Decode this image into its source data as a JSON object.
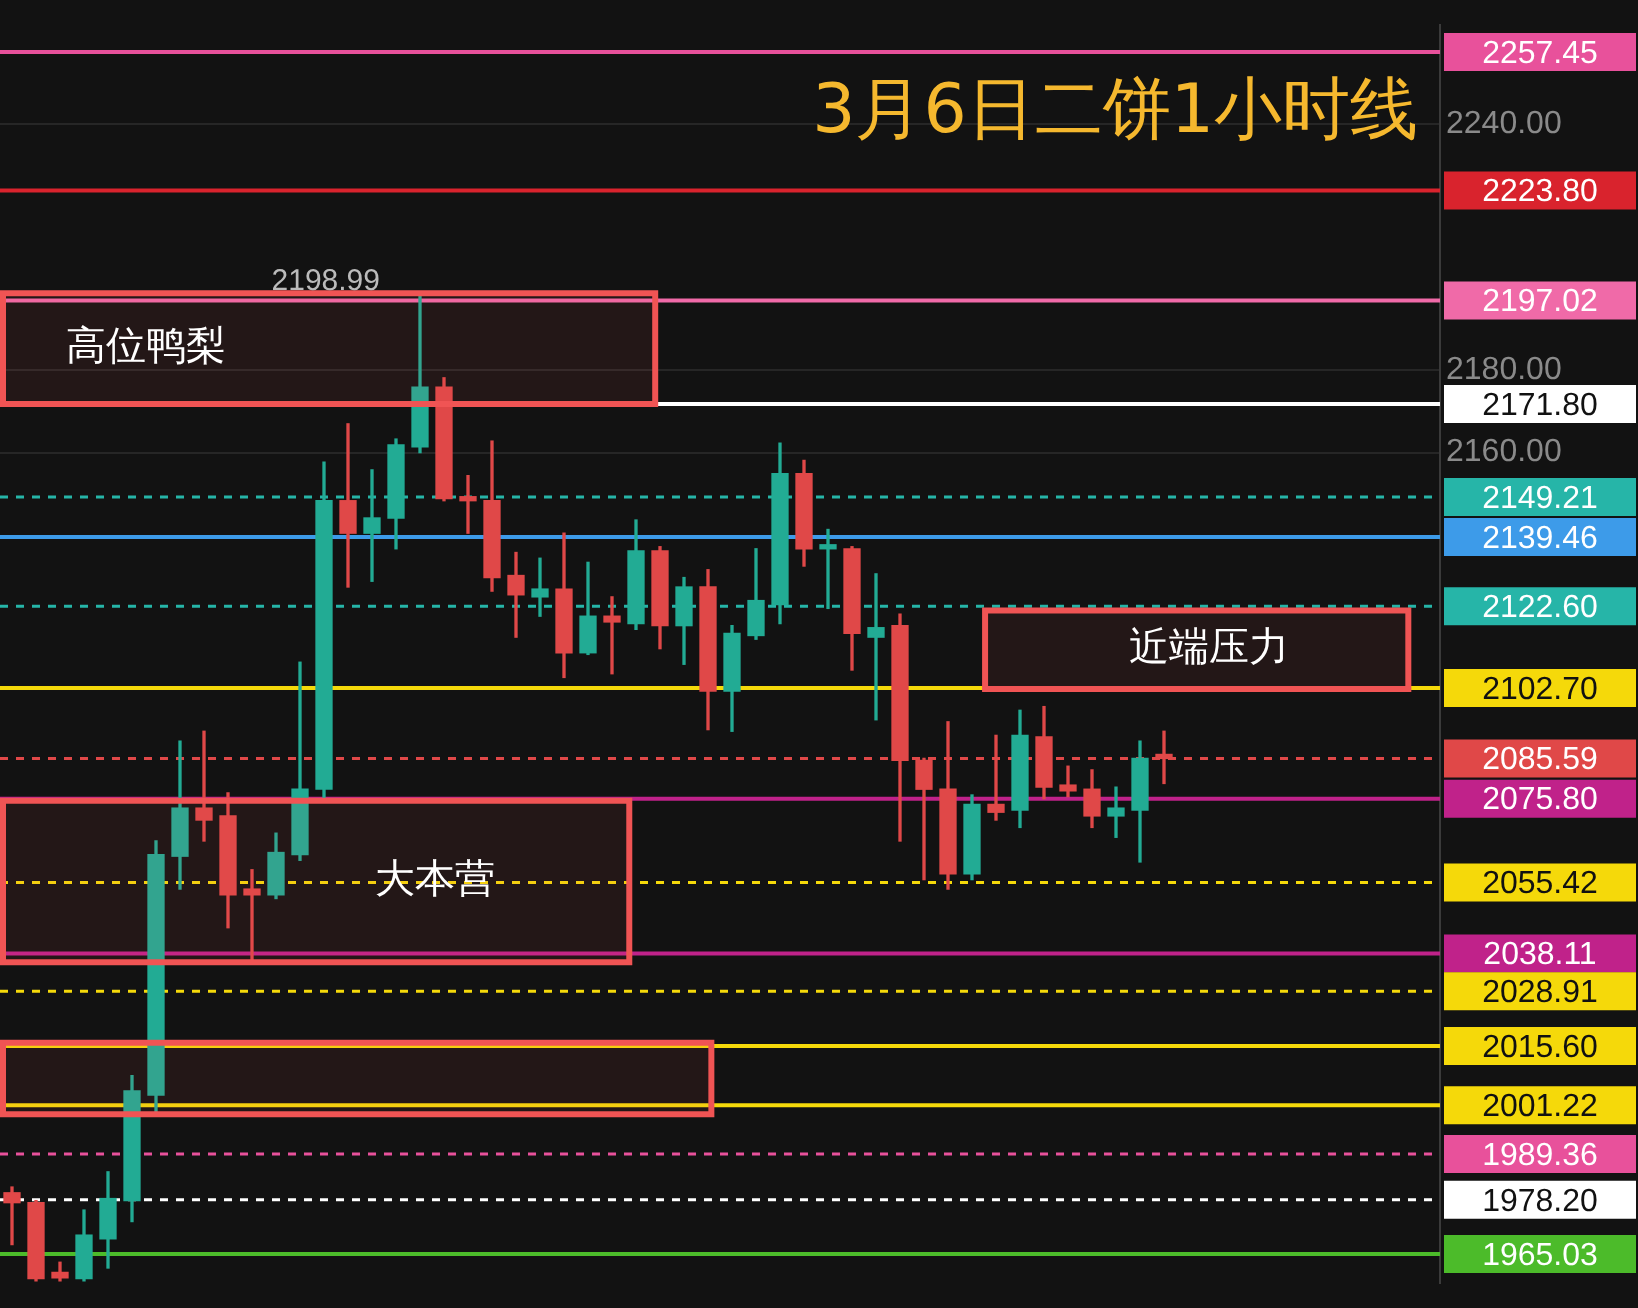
{
  "chart_data": {
    "type": "candlestick",
    "title": "3月6日二饼1小时线",
    "categories": [
      null,
      null,
      null,
      null,
      null,
      null,
      null,
      null,
      null,
      null,
      null,
      null,
      null,
      null,
      null,
      null,
      null,
      null,
      null,
      null,
      null,
      null,
      null,
      null,
      null,
      null,
      null,
      null,
      null,
      null,
      null,
      null,
      null,
      null,
      null,
      null,
      null,
      null,
      null,
      null,
      null,
      null,
      null,
      null,
      null,
      null,
      null,
      null,
      null,
      null,
      null,
      null,
      null,
      null,
      null,
      null,
      null,
      null,
      null,
      null
    ],
    "ohlc": [
      [
        1979.9,
        1981.3,
        1967.3,
        1977.5
      ],
      [
        1977.5,
        1978.0,
        1958.5,
        1959.0
      ],
      [
        1960.5,
        1963.0,
        1958.5,
        1959.2
      ],
      [
        1959.0,
        1975.7,
        1958.5,
        1969.6
      ],
      [
        1968.7,
        1985.0,
        1961.6,
        1978.5
      ],
      [
        1978.0,
        2008.4,
        1972.9,
        2004.7
      ],
      [
        2003.7,
        2065.5,
        1999.1,
        2062.2
      ],
      [
        2061.8,
        2089.8,
        2053.8,
        2073.5
      ],
      [
        2073.5,
        2092.2,
        2065.5,
        2070.6
      ],
      [
        2071.6,
        2077.2,
        2044.4,
        2052.4
      ],
      [
        2053.8,
        2058.5,
        2036.0,
        2052.4
      ],
      [
        2052.4,
        2067.4,
        2051.5,
        2062.7
      ],
      [
        2062.2,
        2109.0,
        2060.8,
        2078.1
      ],
      [
        2078.1,
        2157.7,
        2076.0,
        2148.3
      ],
      [
        2148.3,
        2167.0,
        2127.3,
        2140.4
      ],
      [
        2140.4,
        2155.8,
        2128.7,
        2144.1
      ],
      [
        2144.1,
        2163.3,
        2136.6,
        2161.9
      ],
      [
        2161.4,
        2198.99,
        2160.0,
        2175.9
      ],
      [
        2175.9,
        2178.2,
        2148.3,
        2148.8
      ],
      [
        2148.8,
        2154.4,
        2140.4,
        2148.3
      ],
      [
        2148.3,
        2162.8,
        2126.3,
        2129.6
      ],
      [
        2130.1,
        2135.7,
        2115.1,
        2125.4
      ],
      [
        2124.9,
        2134.3,
        2120.2,
        2126.8
      ],
      [
        2126.8,
        2140.4,
        2105.3,
        2111.3
      ],
      [
        2111.3,
        2133.3,
        2110.9,
        2120.2
      ],
      [
        2120.2,
        2124.9,
        2106.2,
        2118.8
      ],
      [
        2118.4,
        2143.6,
        2117.0,
        2136.1
      ],
      [
        2136.1,
        2137.1,
        2112.3,
        2117.9
      ],
      [
        2117.9,
        2129.6,
        2108.5,
        2127.3
      ],
      [
        2127.3,
        2131.5,
        2092.6,
        2102.0
      ],
      [
        2102.0,
        2117.9,
        2092.2,
        2116.0
      ],
      [
        2115.5,
        2136.6,
        2114.6,
        2124.0
      ],
      [
        2123.0,
        2162.3,
        2118.4,
        2154.9
      ],
      [
        2154.9,
        2158.1,
        2132.4,
        2136.6
      ],
      [
        2136.6,
        2141.3,
        2122.1,
        2137.1
      ],
      [
        2136.6,
        2137.1,
        2107.1,
        2116.0
      ],
      [
        2115.1,
        2130.5,
        2095.0,
        2117.4
      ],
      [
        2117.9,
        2120.7,
        2065.5,
        2085.1
      ],
      [
        2085.1,
        2085.6,
        2056.1,
        2078.1
      ],
      [
        2078.1,
        2094.5,
        2053.8,
        2057.5
      ],
      [
        2057.5,
        2076.7,
        2056.1,
        2074.4
      ],
      [
        2074.4,
        2091.2,
        2070.6,
        2072.5
      ],
      [
        2073.0,
        2097.3,
        2068.8,
        2091.2
      ],
      [
        2090.8,
        2098.2,
        2075.8,
        2078.6
      ],
      [
        2079.1,
        2083.7,
        2076.3,
        2077.7
      ],
      [
        2078.1,
        2082.8,
        2068.8,
        2071.6
      ],
      [
        2071.6,
        2078.6,
        2066.4,
        2073.5
      ],
      [
        2073.0,
        2089.8,
        2060.4,
        2085.6
      ],
      [
        2086.0,
        2092.2,
        2079.5,
        2085.59
      ],
      null,
      null,
      null,
      null,
      null,
      null,
      null,
      null,
      null,
      null,
      null
    ],
    "colors": [
      "#e04848",
      "#e04848",
      "#e04848",
      "#22ab94",
      "#22ab94",
      "#22ab94",
      "#22ab94",
      "#22ab94",
      "#e04848",
      "#e04848",
      "#e04848",
      "#22ab94",
      "#22ab94",
      "#22ab94",
      "#e04848",
      "#22ab94",
      "#22ab94",
      "#22ab94",
      "#e04848",
      "#e04848",
      "#e04848",
      "#e04848",
      "#22ab94",
      "#e04848",
      "#22ab94",
      "#e04848",
      "#22ab94",
      "#e04848",
      "#22ab94",
      "#e04848",
      "#22ab94",
      "#22ab94",
      "#22ab94",
      "#e04848",
      "#22ab94",
      "#e04848",
      "#22ab94",
      "#e04848",
      "#e04848",
      "#e04848",
      "#22ab94",
      "#e04848",
      "#22ab94",
      "#e04848",
      "#e04848",
      "#e04848",
      "#22ab94",
      "#22ab94",
      "#e04848",
      null,
      null,
      null,
      null,
      null,
      null,
      null,
      null,
      null,
      null,
      null
    ],
    "ylim": [
      1958,
      2264
    ],
    "yticks": [
      {
        "value": 2160,
        "label": "2160.00"
      },
      {
        "value": 2180,
        "label": "2180.00"
      },
      {
        "value": 2240,
        "label": "2240.00"
      }
    ],
    "grid": "y",
    "legend": false,
    "tick_labels": "y",
    "ref_lines": [
      {
        "axis": "y",
        "value": 2257.45,
        "label": "2257.45",
        "color": "#e8519b",
        "line_style": "solid"
      },
      {
        "axis": "y",
        "value": 2223.8,
        "label": "2223.80",
        "color": "#d9232d",
        "line_style": "solid"
      },
      {
        "axis": "y",
        "value": 2197.02,
        "label": "2197.02",
        "color": "#f06aa8",
        "line_style": "solid"
      },
      {
        "axis": "y",
        "value": 2171.8,
        "label": "2171.80",
        "color": "#ffffff",
        "line_style": "solid"
      },
      {
        "axis": "y",
        "value": 2149.21,
        "label": "2149.21",
        "color": "#26b5a8",
        "line_style": "dashed"
      },
      {
        "axis": "y",
        "value": 2139.46,
        "label": "2139.46",
        "color": "#3d9be9",
        "line_style": "solid"
      },
      {
        "axis": "y",
        "value": 2122.6,
        "label": "2122.60",
        "color": "#26b5a8",
        "line_style": "dashed"
      },
      {
        "axis": "y",
        "value": 2102.7,
        "label": "2102.70",
        "color": "#f5d90a",
        "line_style": "solid"
      },
      {
        "axis": "y",
        "value": 2085.59,
        "label": "2085.59",
        "color": "#e04848",
        "line_style": "dashed"
      },
      {
        "axis": "y",
        "value": 2075.8,
        "label": "2075.80",
        "color": "#c0228a",
        "line_style": "solid"
      },
      {
        "axis": "y",
        "value": 2055.42,
        "label": "2055.42",
        "color": "#f5d90a",
        "line_style": "dashed"
      },
      {
        "axis": "y",
        "value": 2038.11,
        "label": "2038.11",
        "color": "#c0228a",
        "line_style": "solid"
      },
      {
        "axis": "y",
        "value": 2028.91,
        "label": "2028.91",
        "color": "#f5d90a",
        "line_style": "dashed"
      },
      {
        "axis": "y",
        "value": 2015.6,
        "label": "2015.60",
        "color": "#f5d90a",
        "line_style": "solid"
      },
      {
        "axis": "y",
        "value": 2001.22,
        "label": "2001.22",
        "color": "#f5d90a",
        "line_style": "solid"
      },
      {
        "axis": "y",
        "value": 1989.36,
        "label": "1989.36",
        "color": "#e8519b",
        "line_style": "dashed"
      },
      {
        "axis": "y",
        "value": 1978.2,
        "label": "1978.20",
        "color": "#ffffff",
        "line_style": "dashed"
      },
      {
        "axis": "y",
        "value": 1965.03,
        "label": "1965.03",
        "color": "#4cbb2a",
        "line_style": "solid"
      }
    ],
    "bands": [
      {
        "axis": "y",
        "from": 2171.8,
        "to": 2198.8,
        "label": "高位鸭梨",
        "color": "#f05454"
      },
      {
        "axis": "y",
        "from": 2036.0,
        "to": 2075.3,
        "label": "大本营",
        "color": "#f05454"
      },
      {
        "axis": "y",
        "from": 2102.5,
        "to": 2121.6,
        "label": "近端压力",
        "color": "#f05454"
      },
      {
        "axis": "y",
        "from": 1999.0,
        "to": 2016.4,
        "color": "#f05454"
      }
    ],
    "annotations": [
      {
        "text": "2198.99",
        "y": 2198.99
      }
    ]
  }
}
